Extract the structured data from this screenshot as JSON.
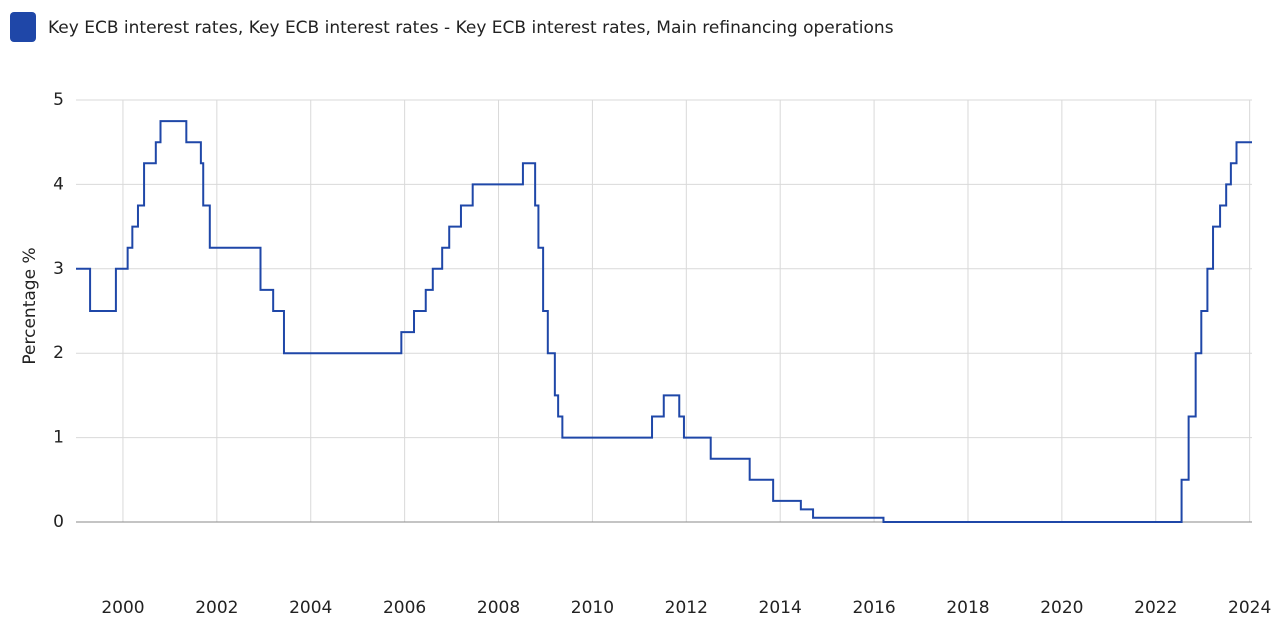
{
  "chart_data": {
    "type": "line",
    "step": true,
    "series": [
      {
        "name": "Key ECB interest rates, Key ECB interest rates - Key ECB interest rates, Main refinancing operations",
        "color": "#1f47a8",
        "x": [
          1999.0,
          1999.3,
          1999.85,
          2000.1,
          2000.2,
          2000.32,
          2000.45,
          2000.7,
          2000.8,
          2001.35,
          2001.66,
          2001.71,
          2001.85,
          2002.93,
          2003.2,
          2003.43,
          2005.93,
          2006.2,
          2006.45,
          2006.6,
          2006.8,
          2006.95,
          2007.2,
          2007.45,
          2008.52,
          2008.78,
          2008.85,
          2008.95,
          2009.05,
          2009.2,
          2009.27,
          2009.36,
          2011.27,
          2011.52,
          2011.85,
          2011.95,
          2012.52,
          2013.35,
          2013.85,
          2014.44,
          2014.7,
          2016.2,
          2022.55,
          2022.7,
          2022.85,
          2022.97,
          2023.1,
          2023.22,
          2023.37,
          2023.5,
          2023.6,
          2023.72,
          2024.05
        ],
        "values": [
          3.0,
          2.5,
          3.0,
          3.25,
          3.5,
          3.75,
          4.25,
          4.5,
          4.75,
          4.5,
          4.25,
          3.75,
          3.25,
          2.75,
          2.5,
          2.0,
          2.25,
          2.5,
          2.75,
          3.0,
          3.25,
          3.5,
          3.75,
          4.0,
          4.25,
          3.75,
          3.25,
          2.5,
          2.0,
          1.5,
          1.25,
          1.0,
          1.25,
          1.5,
          1.25,
          1.0,
          0.75,
          0.5,
          0.25,
          0.15,
          0.05,
          0.0,
          0.5,
          1.25,
          2.0,
          2.5,
          3.0,
          3.5,
          3.75,
          4.0,
          4.25,
          4.5,
          4.5
        ]
      }
    ],
    "ylabel": "Percentage %",
    "xlim": [
      1999.0,
      2024.05
    ],
    "xticks": [
      2000,
      2002,
      2004,
      2006,
      2008,
      2010,
      2012,
      2014,
      2016,
      2018,
      2020,
      2022,
      2024
    ],
    "ylim": [
      0,
      5
    ],
    "yticks": [
      0,
      1,
      2,
      3,
      4,
      5
    ],
    "grid": true
  }
}
